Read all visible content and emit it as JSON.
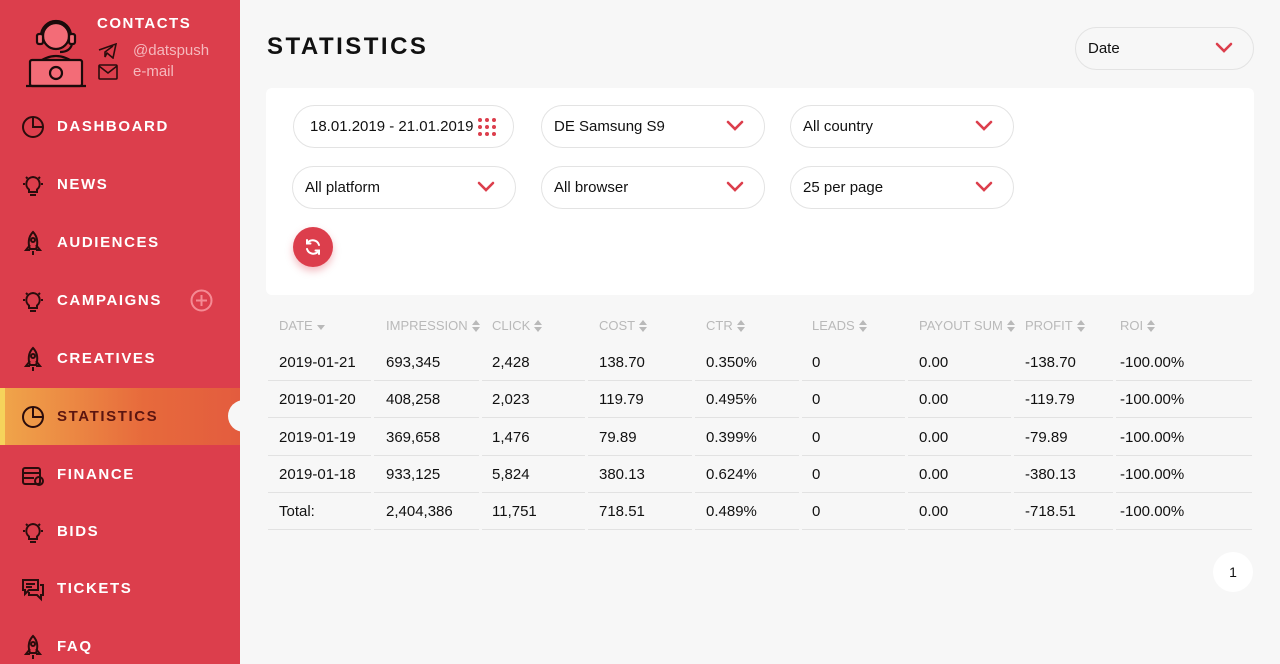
{
  "sidebar": {
    "contacts": {
      "title": "CONTACTS",
      "telegram": "@datspush",
      "email": "e-mail"
    },
    "items": [
      {
        "label": "DASHBOARD",
        "icon": "pie-chart-icon"
      },
      {
        "label": "NEWS",
        "icon": "lightbulb-icon"
      },
      {
        "label": "AUDIENCES",
        "icon": "rocket-icon"
      },
      {
        "label": "CAMPAIGNS",
        "icon": "lightbulb-icon"
      },
      {
        "label": "CREATIVES",
        "icon": "rocket-icon"
      },
      {
        "label": "STATISTICS",
        "icon": "pie-chart-icon",
        "active": true
      },
      {
        "label": "FINANCE",
        "icon": "wallet-icon"
      },
      {
        "label": "BIDS",
        "icon": "lightbulb-icon"
      },
      {
        "label": "TICKETS",
        "icon": "chat-icon"
      },
      {
        "label": "FAQ",
        "icon": "rocket-icon"
      }
    ]
  },
  "header": {
    "title": "STATISTICS",
    "group_by": "Date"
  },
  "filters": {
    "date_range": "18.01.2019 - 21.01.2019",
    "device": "DE Samsung S9",
    "country": "All country",
    "platform": "All platform",
    "browser": "All browser",
    "per_page": "25 per page"
  },
  "table": {
    "columns": [
      "DATE",
      "IMPRESSION",
      "CLICK",
      "COST",
      "CTR",
      "LEADS",
      "PAYOUT SUM",
      "PROFIT",
      "ROI"
    ],
    "rows": [
      [
        "2019-01-21",
        "693,345",
        "2,428",
        "138.70",
        "0.350%",
        "0",
        "0.00",
        "-138.70",
        "-100.00%"
      ],
      [
        "2019-01-20",
        "408,258",
        "2,023",
        "119.79",
        "0.495%",
        "0",
        "0.00",
        "-119.79",
        "-100.00%"
      ],
      [
        "2019-01-19",
        "369,658",
        "1,476",
        "79.89",
        "0.399%",
        "0",
        "0.00",
        "-79.89",
        "-100.00%"
      ],
      [
        "2019-01-18",
        "933,125",
        "5,824",
        "380.13",
        "0.624%",
        "0",
        "0.00",
        "-380.13",
        "-100.00%"
      ],
      [
        "Total:",
        "2,404,386",
        "11,751",
        "718.51",
        "0.489%",
        "0",
        "0.00",
        "-718.51",
        "-100.00%"
      ]
    ]
  },
  "pagination": {
    "current_page": "1"
  },
  "colors": {
    "brand": "#dc3e4c",
    "active_gradient_start": "#f0a64a",
    "active_gradient_end": "#e35c3e"
  }
}
